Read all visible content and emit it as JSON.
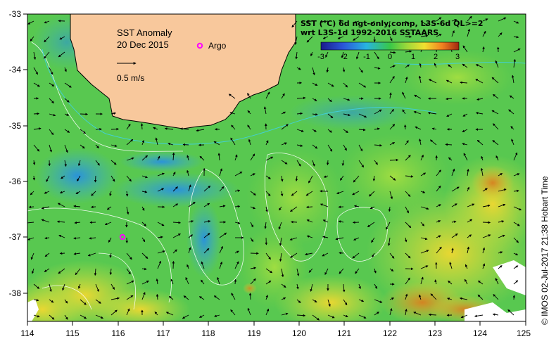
{
  "map": {
    "title": "SST Anomaly",
    "date": "20 Dec 2015",
    "argo_label": "Argo",
    "scale_label": "0.5 m/s",
    "header_line1": "SST (°C) 6d ngt-only comp, L3S-6d QL>=2",
    "header_line2": "wrt L3S-1d 1992-2016 SSTAARS",
    "side_label": "©  IMOS 02-Jul-2017 21:38 Hobart Time",
    "colorbar_ticks": [
      "-3",
      "-2",
      "-1",
      "0",
      "1",
      "2",
      "3"
    ],
    "lat_ticks": [
      "-33",
      "-34",
      "-35",
      "-36",
      "-37",
      "-38"
    ],
    "lon_ticks": [
      "114",
      "115",
      "116",
      "117",
      "118",
      "119",
      "120",
      "121",
      "122",
      "123",
      "124",
      "125"
    ],
    "colors": {
      "land": "#f8c89c",
      "sea_base": "#58c850",
      "argo": "#ff00ff"
    },
    "icons": {
      "argo_marker": "argo-marker-icon",
      "scale_arrow": "scale-arrow-icon"
    }
  }
}
